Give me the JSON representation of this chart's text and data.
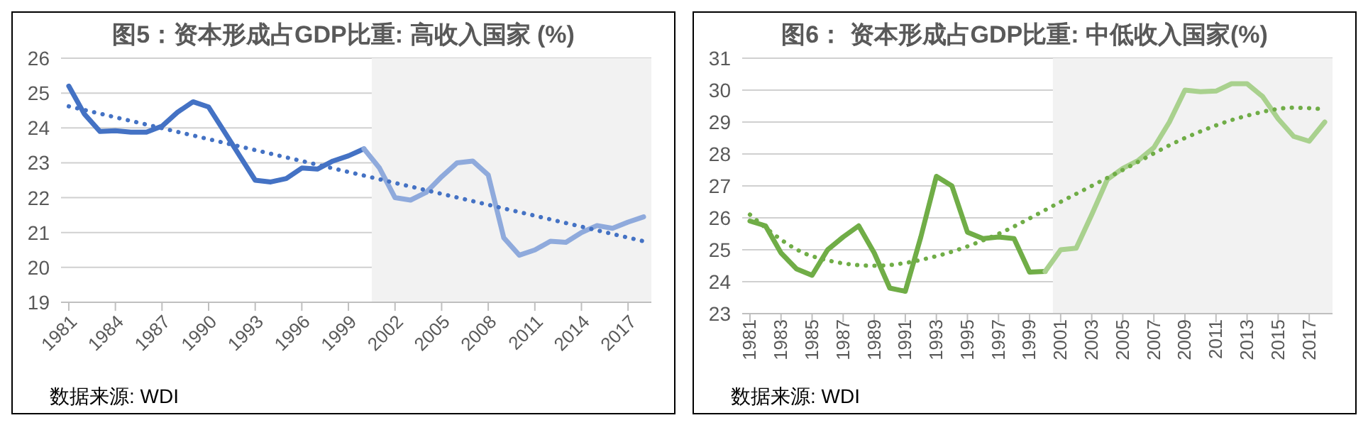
{
  "chart_data": [
    {
      "type": "line",
      "title": "图5：资本形成占GDP比重: 高收入国家 (%)",
      "annotations": [
        "数据来源: WDI"
      ],
      "xlim": [
        1980.5,
        2018.5
      ],
      "xticks": [
        1981,
        1984,
        1987,
        1990,
        1993,
        1996,
        1999,
        2002,
        2005,
        2008,
        2011,
        2014,
        2017
      ],
      "ylim": [
        19,
        26
      ],
      "yticks": [
        19,
        20,
        21,
        22,
        23,
        24,
        25,
        26
      ],
      "grid": "y",
      "marker": "none",
      "bands": [
        {
          "axis": "x",
          "from": 2000.5,
          "to": 2018.5,
          "color": "#f2f2f2"
        }
      ],
      "series": [
        {
          "color": "#4472c4",
          "x": [
            1981,
            1982,
            1983,
            1984,
            1985,
            1986,
            1987,
            1988,
            1989,
            1990,
            1991,
            1992,
            1993,
            1994,
            1995,
            1996,
            1997,
            1998,
            1999,
            2000
          ],
          "values": [
            25.2,
            24.4,
            23.9,
            23.92,
            23.88,
            23.88,
            24.05,
            24.45,
            24.75,
            24.6,
            23.9,
            23.2,
            22.5,
            22.45,
            22.55,
            22.85,
            22.82,
            23.05,
            23.2,
            23.4
          ]
        },
        {
          "color": "#8faadc",
          "x": [
            2000,
            2001,
            2002,
            2003,
            2004,
            2005,
            2006,
            2007,
            2008,
            2009,
            2010,
            2011,
            2012,
            2013,
            2014,
            2015,
            2016,
            2017,
            2018
          ],
          "values": [
            23.4,
            22.85,
            22.0,
            21.93,
            22.15,
            22.6,
            23.0,
            23.05,
            22.65,
            20.85,
            20.35,
            20.5,
            20.75,
            20.72,
            21.0,
            21.2,
            21.12,
            21.3,
            21.45
          ]
        },
        {
          "color": "#4472c4",
          "line_style": "dotted",
          "x": [
            1981,
            2018
          ],
          "values": [
            24.62,
            20.75
          ]
        }
      ]
    },
    {
      "type": "line",
      "title": "图6： 资本形成占GDP比重: 中低收入国家(%)",
      "annotations": [
        "数据来源: WDI"
      ],
      "xlim": [
        1980.5,
        2018.5
      ],
      "xticks": [
        1981,
        1983,
        1985,
        1987,
        1989,
        1991,
        1993,
        1995,
        1997,
        1999,
        2001,
        2003,
        2005,
        2007,
        2009,
        2011,
        2013,
        2015,
        2017
      ],
      "ylim": [
        23,
        31
      ],
      "yticks": [
        23,
        24,
        25,
        26,
        27,
        28,
        29,
        30,
        31
      ],
      "grid": "y",
      "marker": "none",
      "bands": [
        {
          "axis": "x",
          "from": 2000.5,
          "to": 2018.5,
          "color": "#f2f2f2"
        }
      ],
      "series": [
        {
          "color": "#70ad47",
          "x": [
            1981,
            1982,
            1983,
            1984,
            1985,
            1986,
            1987,
            1988,
            1989,
            1990,
            1991,
            1992,
            1993,
            1994,
            1995,
            1996,
            1997,
            1998,
            1999,
            2000
          ],
          "values": [
            25.9,
            25.75,
            24.9,
            24.4,
            24.2,
            25.0,
            25.4,
            25.75,
            24.9,
            23.8,
            23.7,
            25.4,
            27.3,
            27.0,
            25.55,
            25.35,
            25.4,
            25.35,
            24.3,
            24.32
          ]
        },
        {
          "color": "#a9d18e",
          "x": [
            2000,
            2001,
            2002,
            2003,
            2004,
            2005,
            2006,
            2007,
            2008,
            2009,
            2010,
            2011,
            2012,
            2013,
            2014,
            2015,
            2016,
            2017,
            2018
          ],
          "values": [
            24.32,
            25.0,
            25.05,
            26.1,
            27.2,
            27.55,
            27.8,
            28.2,
            29.0,
            30.0,
            29.95,
            29.97,
            30.2,
            30.2,
            29.8,
            29.1,
            28.55,
            28.4,
            29.0
          ]
        },
        {
          "color": "#70ad47",
          "line_style": "dotted",
          "x": [
            1981,
            1985,
            1989,
            1993,
            1997,
            2001,
            2005,
            2009,
            2013,
            2016,
            2018
          ],
          "values": [
            26.1,
            24.8,
            24.5,
            24.8,
            25.5,
            26.5,
            27.5,
            28.5,
            29.2,
            29.45,
            29.4
          ]
        }
      ]
    }
  ]
}
